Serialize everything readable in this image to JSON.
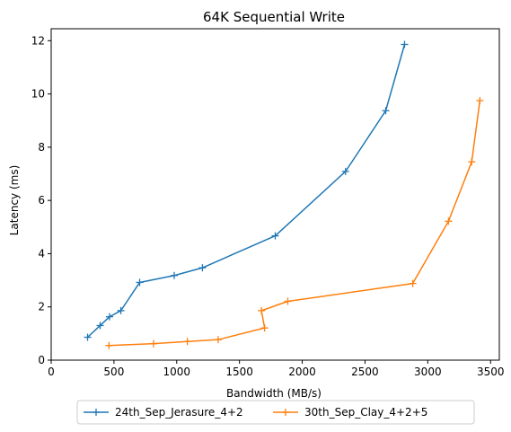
{
  "chart_data": {
    "type": "line",
    "title": "64K  Sequential Write",
    "xlabel": "Bandwidth (MB/s)",
    "ylabel": "Latency (ms)",
    "xlim": [
      0,
      3570
    ],
    "ylim": [
      0,
      12.45
    ],
    "xticks": [
      0,
      500,
      1000,
      1500,
      2000,
      2500,
      3000,
      3500
    ],
    "yticks": [
      0,
      2,
      4,
      6,
      8,
      10,
      12
    ],
    "legend_position": "lower-center-outside",
    "series": [
      {
        "name": "24th_Sep_Jerasure_4+2",
        "color": "#1f77b4",
        "x": [
          290,
          390,
          465,
          555,
          705,
          980,
          1205,
          1785,
          2345,
          2665,
          2815
        ],
        "y": [
          0.86,
          1.3,
          1.63,
          1.86,
          2.92,
          3.18,
          3.47,
          4.67,
          7.09,
          9.37,
          11.86
        ]
      },
      {
        "name": "30th_Sep_Clay_4+2+5",
        "color": "#ff7f0e",
        "x": [
          460,
          815,
          1085,
          1330,
          1700,
          1675,
          1885,
          2880,
          3165,
          3350,
          3415
        ],
        "y": [
          0.55,
          0.62,
          0.7,
          0.77,
          1.21,
          1.86,
          2.21,
          2.88,
          5.22,
          7.45,
          9.75
        ]
      }
    ]
  }
}
